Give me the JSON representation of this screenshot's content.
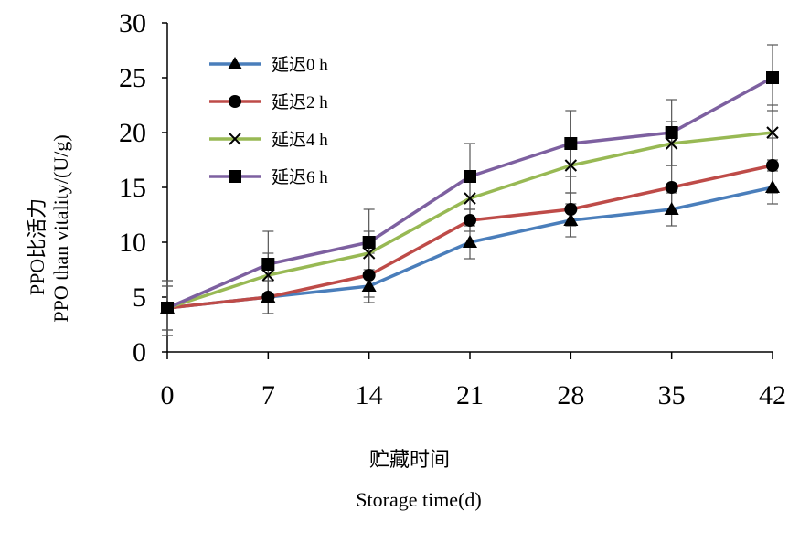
{
  "chart_data": {
    "type": "line",
    "x": [
      0,
      7,
      14,
      21,
      28,
      35,
      42
    ],
    "xlim": [
      0,
      42
    ],
    "ylim": [
      0,
      30
    ],
    "ylabel_cn": "PPO比活力",
    "ylabel_en": "PPO than vitality/(U/g)",
    "xlabel_cn": "贮藏时间",
    "xlabel_en": "Storage time(d)",
    "x_ticks": [
      "0",
      "7",
      "14",
      "21",
      "28",
      "35",
      "42"
    ],
    "y_ticks": [
      "0",
      "5",
      "10",
      "15",
      "20",
      "25",
      "30"
    ],
    "grid": false,
    "legend_position": "top-left",
    "series": [
      {
        "name": "延迟0 h",
        "color": "#4a7ebb",
        "marker": "triangle",
        "values": [
          4,
          5,
          6,
          10,
          12,
          13,
          15
        ],
        "errors": [
          2.5,
          1.5,
          1.5,
          1.5,
          1.5,
          1.5,
          1.5
        ]
      },
      {
        "name": "延迟2 h",
        "color": "#be4b48",
        "marker": "circle",
        "values": [
          4,
          5,
          7,
          12,
          13,
          15,
          17
        ],
        "errors": [
          2.5,
          1.5,
          2.0,
          1.0,
          1.5,
          2.0,
          2.5
        ]
      },
      {
        "name": "延迟4 h",
        "color": "#98b954",
        "marker": "x",
        "values": [
          4,
          7,
          9,
          14,
          17,
          19,
          20
        ],
        "errors": [
          2.0,
          2.0,
          2.0,
          2.0,
          2.5,
          2.0,
          2.5
        ]
      },
      {
        "name": "延迟6 h",
        "color": "#7d60a0",
        "marker": "square",
        "values": [
          4,
          8,
          10,
          16,
          19,
          20,
          25
        ],
        "errors": [
          2.0,
          3.0,
          3.0,
          3.0,
          3.0,
          3.0,
          3.0
        ]
      }
    ]
  }
}
